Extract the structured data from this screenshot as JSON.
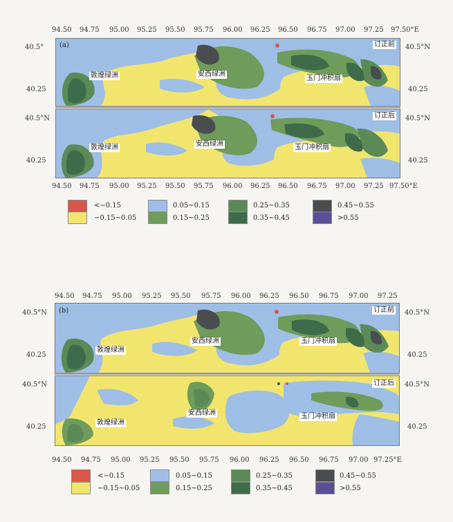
{
  "colors": {
    "c_lt_m015": "#d9564a",
    "c_m015_m005": "#f2e56d",
    "c_005_015": "#9ebee6",
    "c_015_025": "#6f9b5b",
    "c_025_035": "#5c8a57",
    "c_035_045": "#3e6b4a",
    "c_045_055": "#4a4d50",
    "c_gt_055": "#5b4f97",
    "separator": "#9a99a3"
  },
  "panel_a": {
    "label": "(a)",
    "top_ticks": [
      "94.50",
      "94.75",
      "95.00",
      "95.25",
      "95.50",
      "95.75",
      "96.00",
      "96.25",
      "96.50",
      "96.75",
      "97.00",
      "97.25",
      "97.50°E"
    ],
    "bottom_ticks": [
      "94.50",
      "94.75",
      "95.00",
      "95.25",
      "95.50",
      "95.75",
      "96.00",
      "96.25",
      "96.50",
      "96.75",
      "97.00",
      "97.25",
      "97.50°E"
    ],
    "upper": {
      "left_ticks": [
        "40.5°",
        "40.25"
      ],
      "right_ticks": [
        "40.5°N",
        "40.25"
      ],
      "tag": "订正前",
      "places": [
        "敦煌绿洲",
        "安西绿洲",
        "玉门冲积扇"
      ]
    },
    "lower": {
      "left_ticks": [
        "40.5°N",
        "40.25"
      ],
      "right_ticks": [
        "40.5°N",
        "40.25"
      ],
      "tag": "订正后",
      "places": [
        "敦煌绿洲",
        "安西绿洲",
        "玉门冲积扇"
      ]
    },
    "legend": [
      "<−0.15",
      "−0.15~0.05",
      "0.05~0.15",
      "0.15~0.25",
      "0.25~0.35",
      "0.35~0.45",
      "0.45~0.55",
      ">0.55"
    ]
  },
  "panel_b": {
    "label": "(b)",
    "top_ticks": [
      "94.50",
      "94.75",
      "95.00",
      "95.25",
      "95.50",
      "95.75",
      "96.00",
      "96.25",
      "96.50",
      "96.75",
      "97.00",
      "97.25"
    ],
    "bottom_ticks": [
      "94.50",
      "94.75",
      "95.00",
      "95.25",
      "95.50",
      "95.75",
      "96.00",
      "96.25",
      "96.50",
      "96.75",
      "97.00",
      "97.25°E"
    ],
    "upper": {
      "left_ticks": [
        "40.5°N",
        "40.25"
      ],
      "right_ticks": [
        "40.5°N",
        "40.25"
      ],
      "tag": "订正前",
      "places": [
        "敦煌绿洲",
        "安西绿洲",
        "玉门冲积扇"
      ]
    },
    "lower": {
      "left_ticks": [
        "40.5°N",
        "40.25"
      ],
      "right_ticks": [
        "40.5°N",
        "40.25"
      ],
      "tag": "订正后",
      "places": [
        "敦煌绿洲",
        "安西绿洲",
        "玉门冲积扇"
      ]
    },
    "legend": [
      "<−0.15",
      "−0.15~0.05",
      "0.05~0.15",
      "0.15~0.25",
      "0.25~0.35",
      "0.35~0.45",
      "0.45~0.55",
      ">0.55"
    ]
  }
}
